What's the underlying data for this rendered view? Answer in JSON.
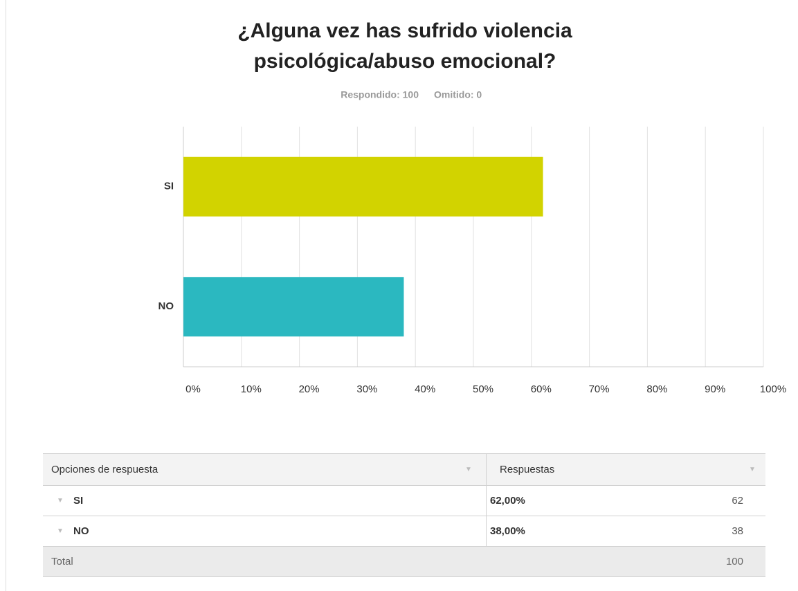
{
  "chart_data": {
    "type": "bar",
    "orientation": "horizontal",
    "title": [
      "¿Alguna vez has sufrido violencia",
      "psicológica/abuso emocional?"
    ],
    "answered": "Respondido: 100",
    "skipped": "Omitido: 0",
    "categories": [
      "SI",
      "NO"
    ],
    "values": [
      62,
      38
    ],
    "colors": [
      "#d2d300",
      "#2bb8c0"
    ],
    "xlim": [
      0,
      100
    ],
    "xticks": [
      {
        "value": 0,
        "label": "0%"
      },
      {
        "value": 10,
        "label": "10%"
      },
      {
        "value": 20,
        "label": "20%"
      },
      {
        "value": 30,
        "label": "30%"
      },
      {
        "value": 40,
        "label": "40%"
      },
      {
        "value": 50,
        "label": "50%"
      },
      {
        "value": 60,
        "label": "60%"
      },
      {
        "value": 70,
        "label": "70%"
      },
      {
        "value": 80,
        "label": "80%"
      },
      {
        "value": 90,
        "label": "90%"
      },
      {
        "value": 100,
        "label": "100%"
      }
    ],
    "grid": true
  },
  "table": {
    "header": [
      "Opciones de respuesta",
      "Respuestas"
    ],
    "rows": [
      [
        "SI",
        "62,00%",
        "62"
      ],
      [
        "NO",
        "38,00%",
        "38"
      ]
    ],
    "total": [
      "Total",
      "100"
    ]
  }
}
